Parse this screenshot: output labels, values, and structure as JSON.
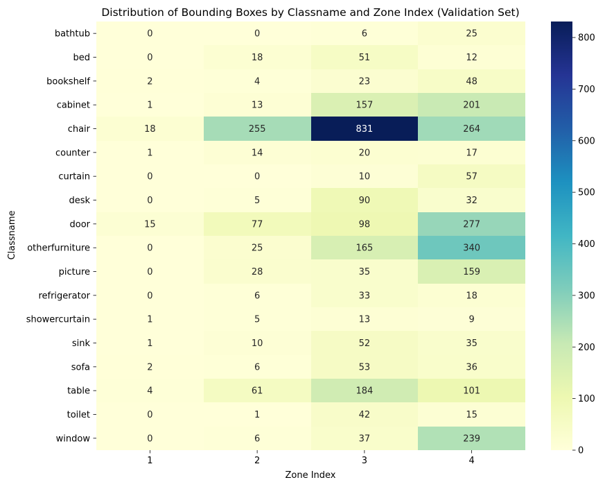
{
  "chart_data": {
    "type": "heatmap",
    "title": "Distribution of Bounding Boxes by Classname and Zone Index (Validation Set)",
    "xlabel": "Zone Index",
    "ylabel": "Classname",
    "x_categories": [
      "1",
      "2",
      "3",
      "4"
    ],
    "y_categories": [
      "bathtub",
      "bed",
      "bookshelf",
      "cabinet",
      "chair",
      "counter",
      "curtain",
      "desk",
      "door",
      "otherfurniture",
      "picture",
      "refrigerator",
      "showercurtain",
      "sink",
      "sofa",
      "table",
      "toilet",
      "window"
    ],
    "values": [
      [
        0,
        0,
        6,
        25
      ],
      [
        0,
        18,
        51,
        12
      ],
      [
        2,
        4,
        23,
        48
      ],
      [
        1,
        13,
        157,
        201
      ],
      [
        18,
        255,
        831,
        264
      ],
      [
        1,
        14,
        20,
        17
      ],
      [
        0,
        0,
        10,
        57
      ],
      [
        0,
        5,
        90,
        32
      ],
      [
        15,
        77,
        98,
        277
      ],
      [
        0,
        25,
        165,
        340
      ],
      [
        0,
        28,
        35,
        159
      ],
      [
        0,
        6,
        33,
        18
      ],
      [
        1,
        5,
        13,
        9
      ],
      [
        1,
        10,
        52,
        35
      ],
      [
        2,
        6,
        53,
        36
      ],
      [
        4,
        61,
        184,
        101
      ],
      [
        0,
        1,
        42,
        15
      ],
      [
        0,
        6,
        37,
        239
      ]
    ],
    "colorbar": {
      "colormap": "YlGnBu",
      "range": [
        0,
        831
      ],
      "ticks": [
        0,
        100,
        200,
        300,
        400,
        500,
        600,
        700,
        800
      ]
    }
  }
}
